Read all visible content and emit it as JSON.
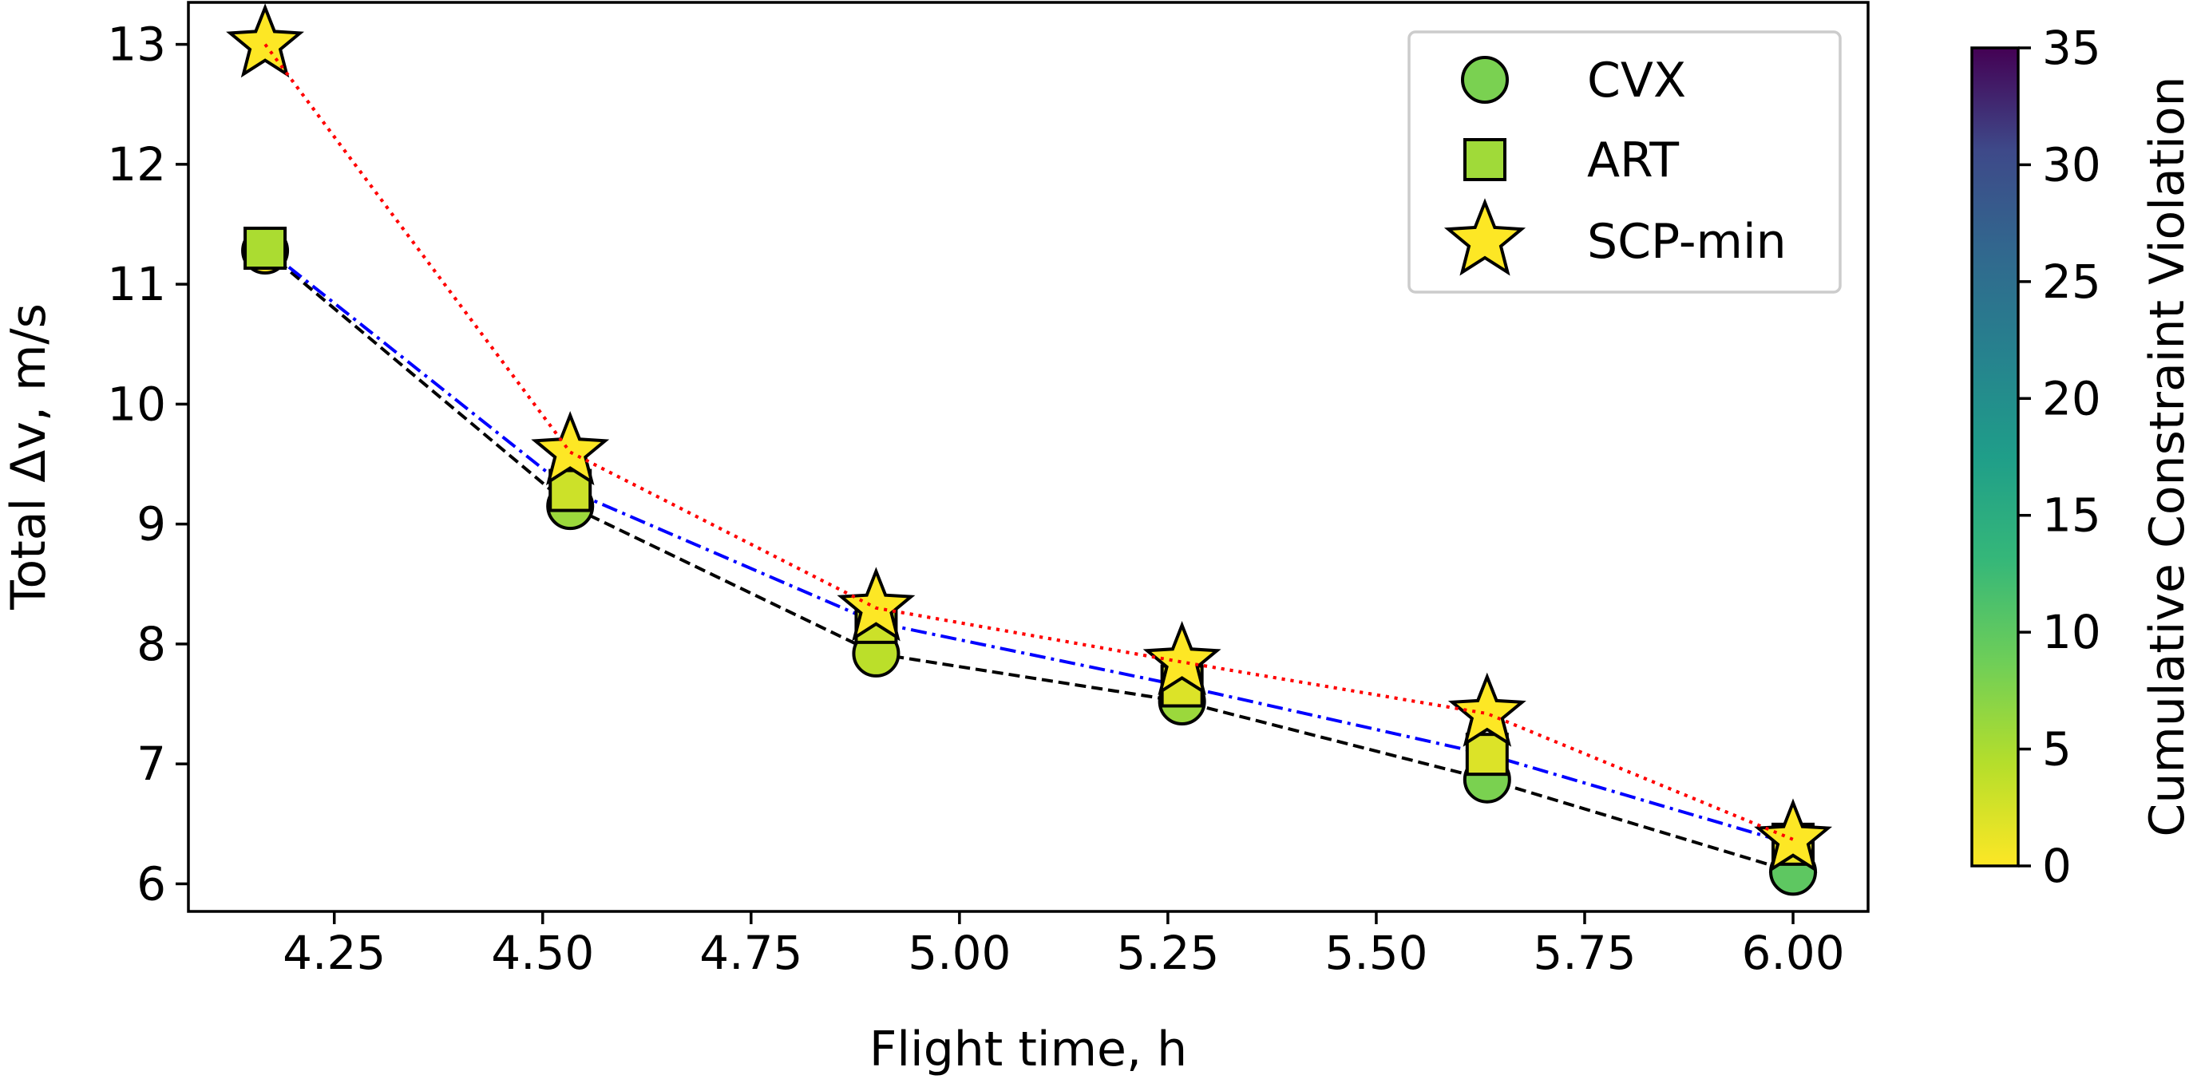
{
  "chart_data": {
    "type": "line",
    "title": "",
    "xlabel": "Flight time, h",
    "ylabel": "Total Δv, m/s",
    "xlim": [
      4.075,
      6.09
    ],
    "ylim": [
      5.77,
      13.35
    ],
    "xticks": [
      4.25,
      4.5,
      4.75,
      5.0,
      5.25,
      5.5,
      5.75,
      6.0
    ],
    "xtick_labels": [
      "4.25",
      "4.50",
      "4.75",
      "5.00",
      "5.25",
      "5.50",
      "5.75",
      "6.00"
    ],
    "yticks": [
      6,
      7,
      8,
      9,
      10,
      11,
      12,
      13
    ],
    "ytick_labels": [
      "6",
      "7",
      "8",
      "9",
      "10",
      "11",
      "12",
      "13"
    ],
    "grid": false,
    "legend_position": "top-right",
    "x": [
      4.167,
      4.533,
      4.9,
      5.267,
      5.633,
      6.0
    ],
    "series": [
      {
        "name": "CVX",
        "marker": "circle",
        "line_style": "dashed",
        "line_color": "#000000",
        "legend_color": "#7ad151",
        "values": [
          11.28,
          9.15,
          7.92,
          7.52,
          6.87,
          6.1
        ],
        "violation": [
          0,
          6,
          4,
          6,
          8,
          10
        ]
      },
      {
        "name": "ART",
        "marker": "square",
        "line_style": "dashdot",
        "line_color": "#0000ff",
        "legend_color": "#a0da39",
        "values": [
          11.3,
          9.28,
          8.18,
          7.65,
          7.08,
          6.33
        ],
        "violation": [
          5,
          3,
          3,
          2,
          2,
          1
        ]
      },
      {
        "name": "SCP-min",
        "marker": "star",
        "line_style": "dotted",
        "line_color": "#ff0000",
        "legend_color": "#fde725",
        "values": [
          13.0,
          9.6,
          8.3,
          7.85,
          7.42,
          6.37
        ],
        "violation": [
          0,
          0,
          0,
          0,
          0,
          0
        ]
      }
    ],
    "colorbar": {
      "label": "Cumulative Constraint Violation",
      "min": 0,
      "max": 35,
      "ticks": [
        0,
        5,
        10,
        15,
        20,
        25,
        30,
        35
      ],
      "tick_labels": [
        "0",
        "5",
        "10",
        "15",
        "20",
        "25",
        "30",
        "35"
      ],
      "colormap": "viridis"
    }
  }
}
